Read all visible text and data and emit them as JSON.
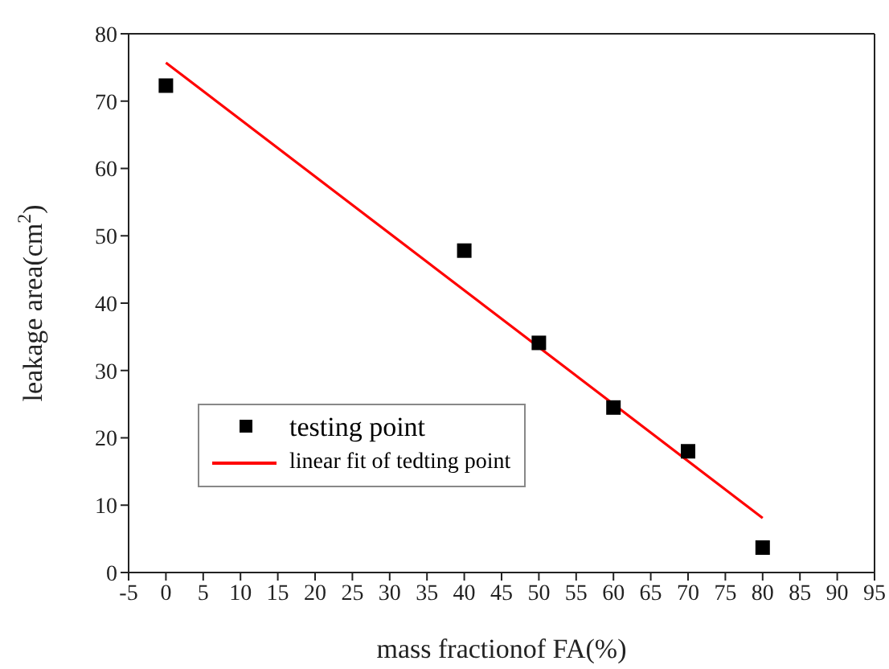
{
  "chart_data": {
    "type": "scatter",
    "xlabel": "mass fractionof FA(%)",
    "ylabel": "leakage area(cm$^{2}$)",
    "xlim": [
      -5,
      95
    ],
    "xticks": [
      -5,
      0,
      5,
      10,
      15,
      20,
      25,
      30,
      35,
      40,
      45,
      50,
      55,
      60,
      65,
      70,
      75,
      80,
      85,
      90,
      95
    ],
    "ylim": [
      0,
      80
    ],
    "yticks": [
      0,
      10,
      20,
      30,
      40,
      50,
      60,
      70,
      80
    ],
    "legend": "bottom left",
    "series": [
      {
        "name": "testing point",
        "marker": "square",
        "color": "#000000",
        "x": [
          0,
          40,
          50,
          60,
          70,
          80
        ],
        "values": [
          72.3,
          47.8,
          34.1,
          24.5,
          18.0,
          3.7
        ]
      },
      {
        "name": "linear fit of tedting point",
        "type": "line",
        "marker": "none",
        "color": "#ff0000",
        "x": [
          0,
          80
        ],
        "values": [
          75.7,
          8.1
        ]
      }
    ]
  }
}
